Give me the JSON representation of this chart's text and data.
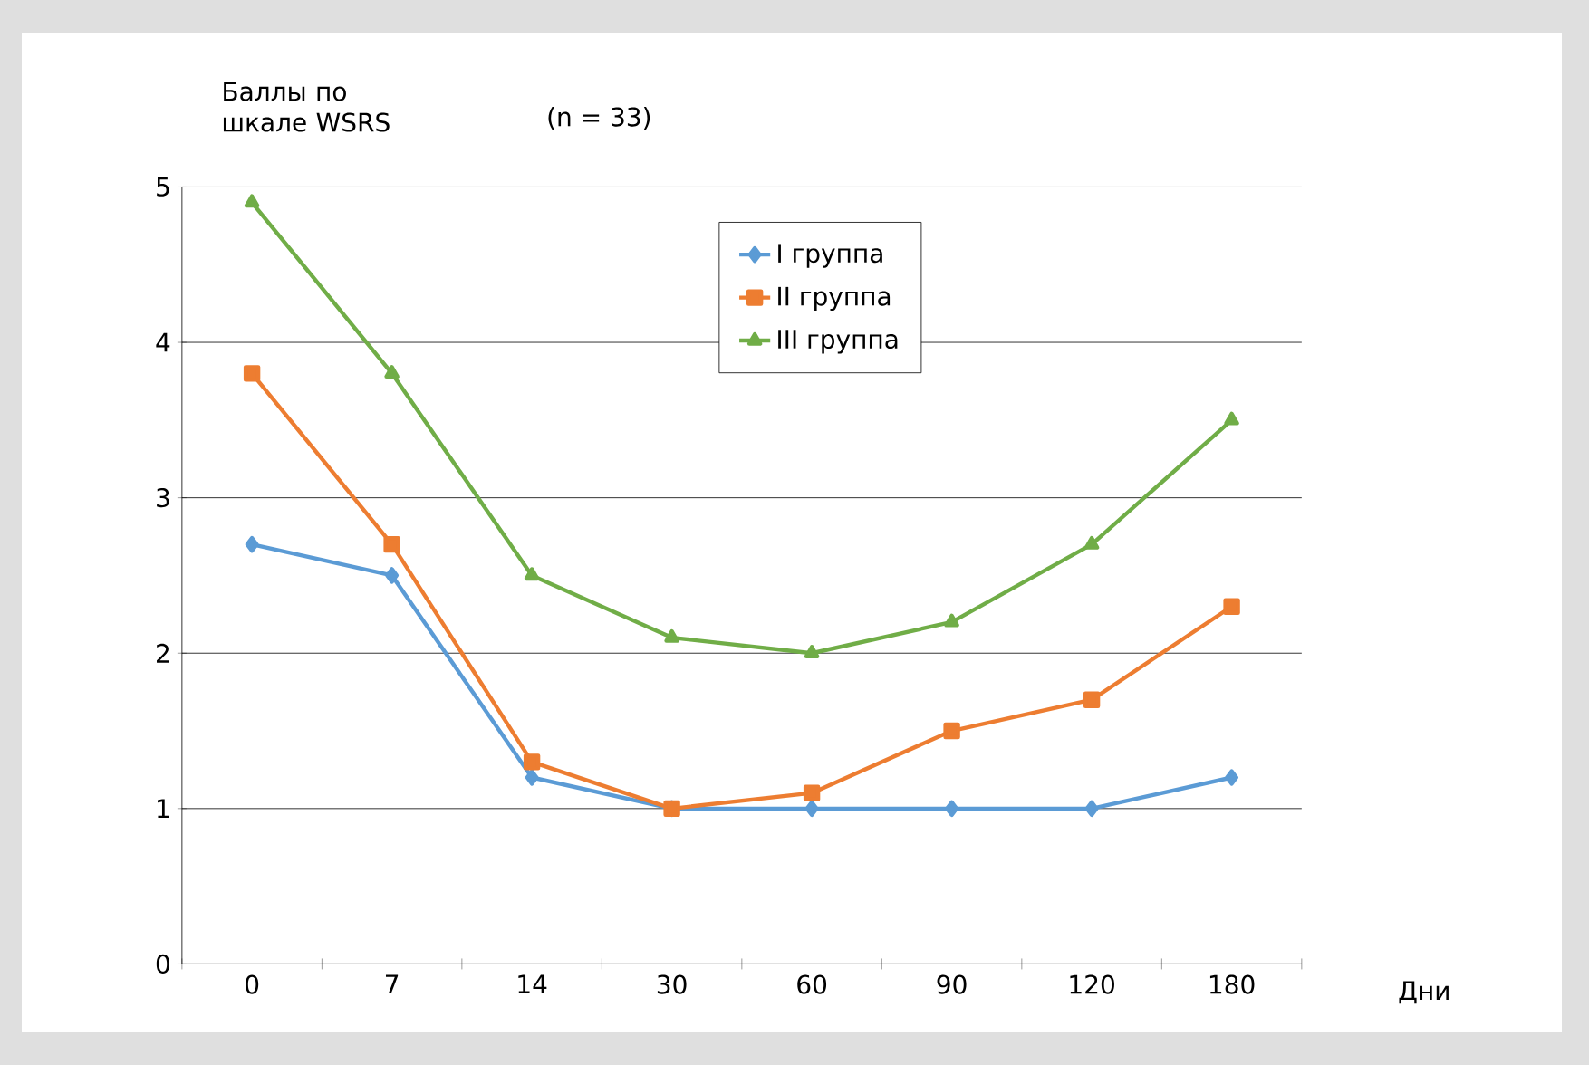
{
  "chart_data": {
    "type": "line",
    "ylabel": "Баллы по шкале WSRS",
    "xlabel": "Дни",
    "annotations": [
      "(n = 33)"
    ],
    "categories": [
      "0",
      "7",
      "14",
      "30",
      "60",
      "90",
      "120",
      "180"
    ],
    "ylim": [
      0,
      5
    ],
    "yticks": [
      0,
      1,
      2,
      3,
      4,
      5
    ],
    "grid": "y",
    "legend": "top",
    "series": [
      {
        "name": "I группа",
        "color": "#5b9bd5",
        "marker": "diamond",
        "values": [
          2.7,
          2.5,
          1.2,
          1.0,
          1.0,
          1.0,
          1.0,
          1.2
        ]
      },
      {
        "name": "II группа",
        "color": "#ed7d31",
        "marker": "square",
        "values": [
          3.8,
          2.7,
          1.3,
          1.0,
          1.1,
          1.5,
          1.7,
          2.3
        ]
      },
      {
        "name": "III группа",
        "color": "#70ad47",
        "marker": "triangle",
        "values": [
          4.9,
          3.8,
          2.5,
          2.1,
          2.0,
          2.2,
          2.7,
          3.5
        ]
      }
    ]
  }
}
